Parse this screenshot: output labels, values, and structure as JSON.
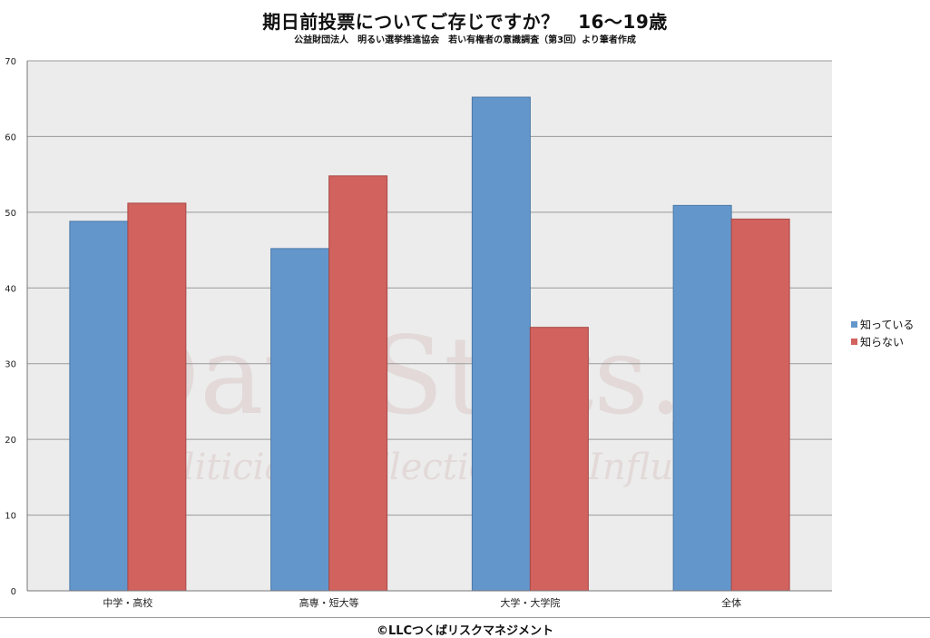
{
  "title": "期日前投票についてご存じですか？　16〜19歳",
  "subtitle": "公益財団法人　明るい選挙推進協会　若い有権者の意識調査（第3回）より筆者作成",
  "footer": "©LLCつくばリスクマネジメント",
  "watermark": {
    "main": "DataStats.jp",
    "sub": "Politicians , Elections & Influence"
  },
  "colors": {
    "series1": "#6397cc",
    "series2": "#d1625e",
    "plot_bg": "#ececec",
    "grid": "#9a9a9a"
  },
  "chart_data": {
    "type": "bar",
    "title": "期日前投票についてご存じですか？　16〜19歳",
    "categories": [
      "中学・高校",
      "高専・短大等",
      "大学・大学院",
      "全体"
    ],
    "series": [
      {
        "name": "知っている",
        "values": [
          48.8,
          45.2,
          65.2,
          50.9
        ]
      },
      {
        "name": "知らない",
        "values": [
          51.2,
          54.8,
          34.8,
          49.1
        ]
      }
    ],
    "ylim": [
      0,
      70
    ],
    "yticks": [
      0,
      10,
      20,
      30,
      40,
      50,
      60,
      70
    ],
    "grid": true,
    "legend": "right"
  }
}
